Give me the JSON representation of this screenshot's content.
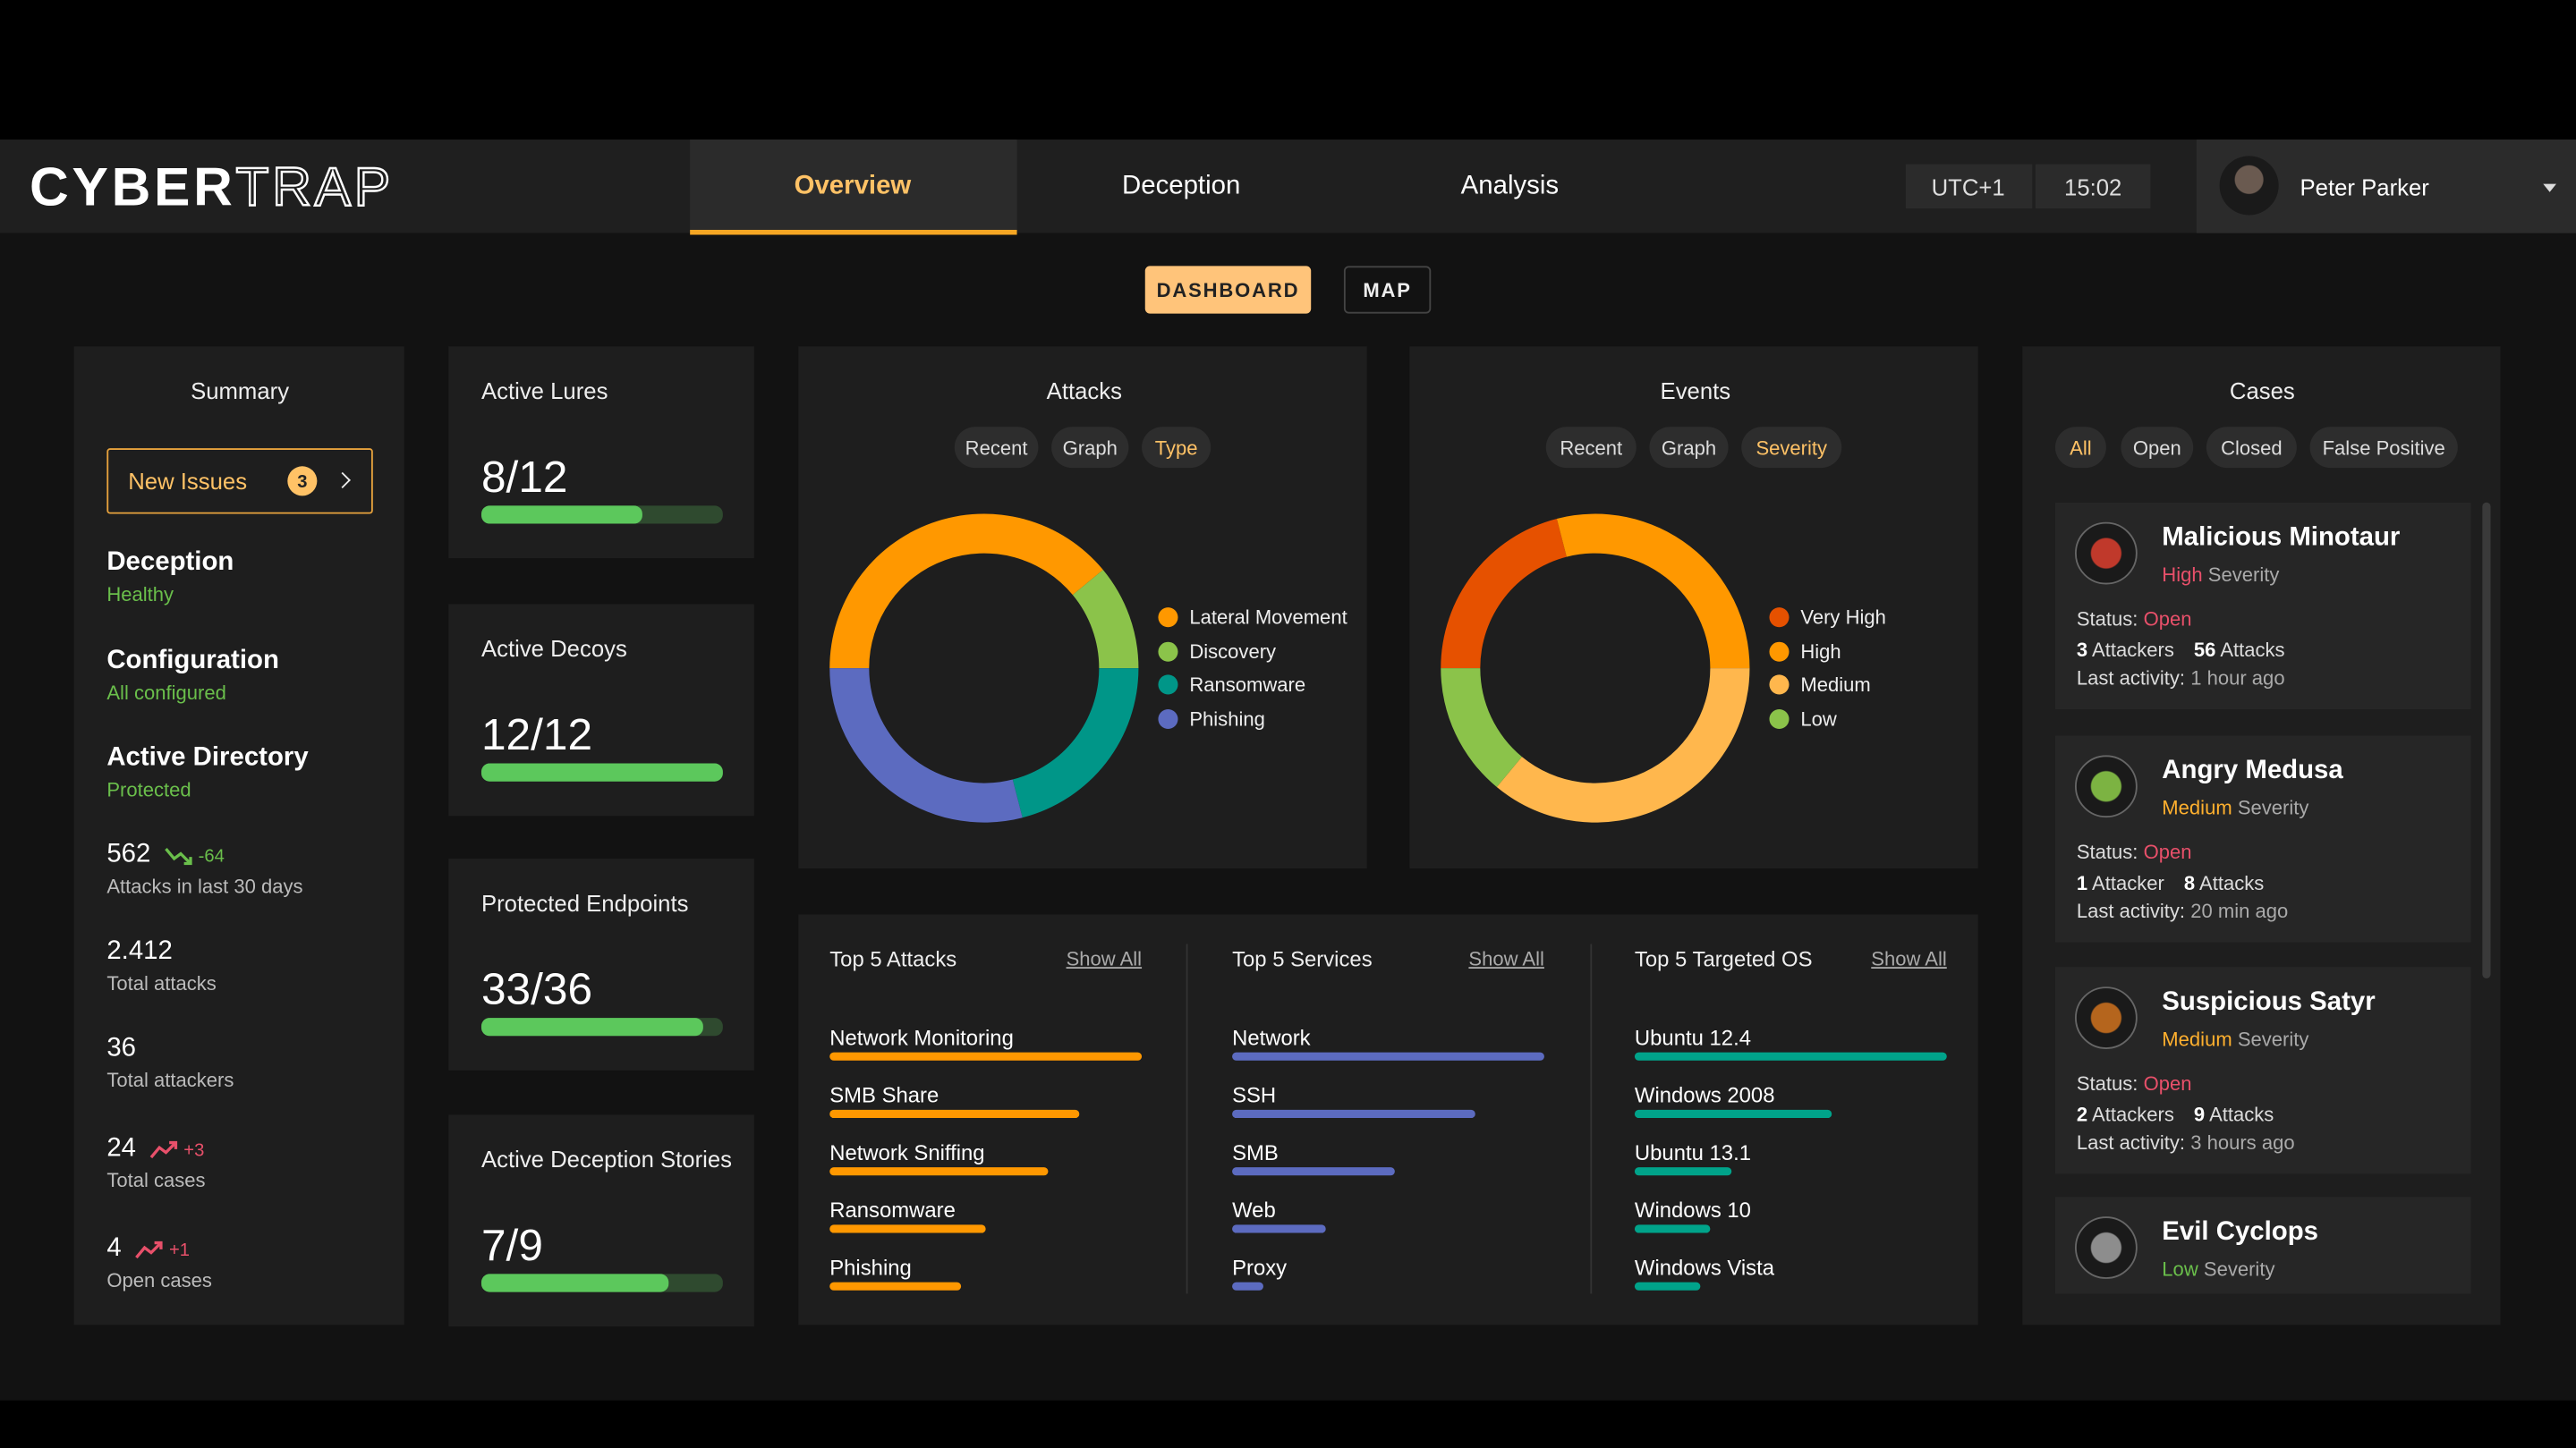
{
  "header": {
    "logo_bold": "CYBER",
    "logo_light": "TRAP",
    "tabs": [
      "Overview",
      "Deception",
      "Analysis"
    ],
    "active_tab": 0,
    "timezone": "UTC+1",
    "time": "15:02",
    "user": "Peter Parker"
  },
  "view_toggle": {
    "buttons": [
      "DASHBOARD",
      "MAP"
    ],
    "active": 0
  },
  "summary": {
    "title": "Summary",
    "new_issues": {
      "label": "New Issues",
      "count": "3"
    },
    "statuses": [
      {
        "name": "Deception",
        "state": "Healthy"
      },
      {
        "name": "Configuration",
        "state": "All configured"
      },
      {
        "name": "Active Directory",
        "state": "Protected"
      }
    ],
    "stats": [
      {
        "value": "562",
        "trend": "-64",
        "direction": "down",
        "label": "Attacks in last 30 days"
      },
      {
        "value": "2.412",
        "label": "Total attacks"
      },
      {
        "value": "36",
        "label": "Total attackers"
      },
      {
        "value": "24",
        "trend": "+3",
        "direction": "up",
        "label": "Total cases"
      },
      {
        "value": "4",
        "trend": "+1",
        "direction": "up",
        "label": "Open cases"
      }
    ]
  },
  "counters": [
    {
      "title": "Active Lures",
      "value": "8/12"
    },
    {
      "title": "Active Decoys",
      "value": "12/12"
    },
    {
      "title": "Protected Endpoints",
      "value": "33/36"
    },
    {
      "title": "Active Deception Stories",
      "value": "7/9"
    }
  ],
  "attacks": {
    "type": "donut",
    "title": "Attacks",
    "tabs": [
      "Recent",
      "Graph",
      "Type"
    ],
    "active_tab": 2,
    "categories": [
      "Lateral Movement",
      "Discovery",
      "Ransomware",
      "Phishing"
    ],
    "values": [
      39,
      11,
      21,
      29
    ],
    "colors": [
      "#ff9800",
      "#8bc34a",
      "#009688",
      "#5c6bc0"
    ]
  },
  "events": {
    "type": "donut",
    "title": "Events",
    "tabs": [
      "Recent",
      "Graph",
      "Severity"
    ],
    "active_tab": 2,
    "categories": [
      "Very High",
      "High",
      "Medium",
      "Low"
    ],
    "values": [
      21,
      29,
      36,
      14
    ],
    "colors": [
      "#e65100",
      "#ff9800",
      "#ffb74d",
      "#8bc34a"
    ]
  },
  "top5": {
    "show_all": "Show All",
    "xlim": [
      0,
      100
    ],
    "lists": [
      {
        "title": "Top 5 Attacks",
        "color": "#ff9800",
        "categories": [
          "Network Monitoring",
          "SMB Share",
          "Network Sniffing",
          "Ransomware",
          "Phishing"
        ],
        "values": [
          100,
          80,
          70,
          50,
          42
        ]
      },
      {
        "title": "Top 5 Services",
        "color": "#5c6bc0",
        "categories": [
          "Network",
          "SSH",
          "SMB",
          "Web",
          "Proxy"
        ],
        "values": [
          100,
          78,
          52,
          30,
          10
        ]
      },
      {
        "title": "Top 5 Targeted OS",
        "color": "#00a38a",
        "categories": [
          "Ubuntu 12.4",
          "Windows 2008",
          "Ubuntu 13.1",
          "Windows 10",
          "Windows Vista"
        ],
        "values": [
          100,
          63,
          31,
          24,
          21
        ]
      }
    ]
  },
  "cases": {
    "title": "Cases",
    "filters": [
      "All",
      "Open",
      "Closed",
      "False Positive"
    ],
    "active_filter": 0,
    "severity_word": "Severity",
    "status_label": "Status:",
    "activity_label": "Last activity:",
    "severity_colors": {
      "High": "#e8506a",
      "Medium": "#ffb02e",
      "Low": "#6abf4b"
    },
    "status_color": "#e8506a",
    "items": [
      {
        "name": "Malicious Minotaur",
        "severity": "High",
        "status": "Open",
        "attackers": "3",
        "attackers_label": "Attackers",
        "attacks": "56",
        "attacks_label": "Attacks",
        "last_activity": "1 hour ago"
      },
      {
        "name": "Angry Medusa",
        "severity": "Medium",
        "status": "Open",
        "attackers": "1",
        "attackers_label": "Attacker",
        "attacks": "8",
        "attacks_label": "Attacks",
        "last_activity": "20 min ago"
      },
      {
        "name": "Suspicious Satyr",
        "severity": "Medium",
        "status": "Open",
        "attackers": "2",
        "attackers_label": "Attackers",
        "attacks": "9",
        "attacks_label": "Attacks",
        "last_activity": "3 hours ago"
      },
      {
        "name": "Evil Cyclops",
        "severity": "Low"
      }
    ]
  }
}
